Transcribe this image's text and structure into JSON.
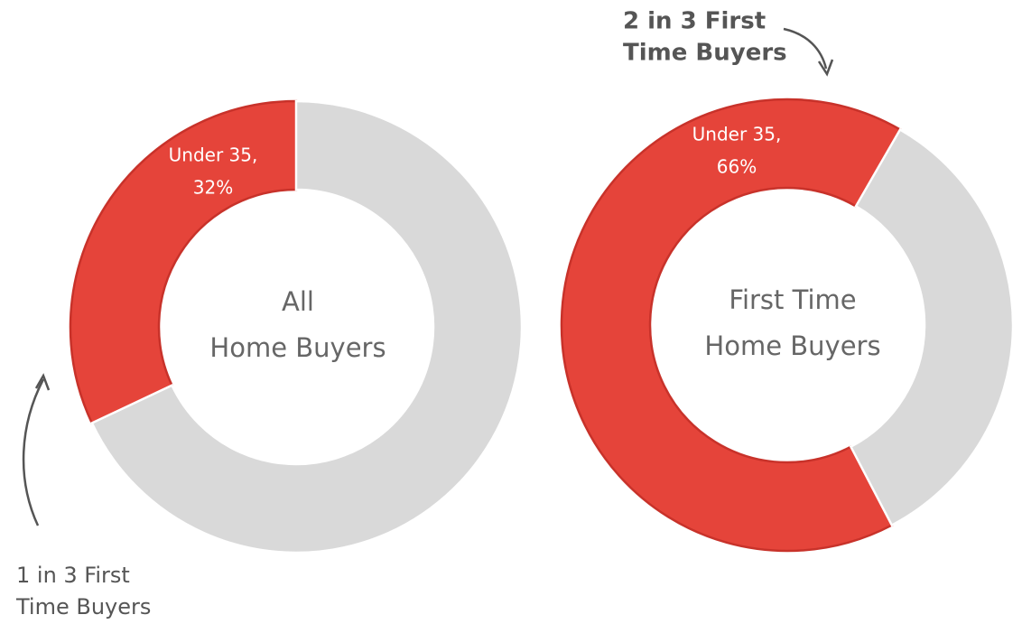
{
  "chart_data": [
    {
      "type": "donut",
      "title": [
        "All",
        "Home Buyers"
      ],
      "categories": [
        "Under 35,",
        null
      ],
      "values": [
        32,
        68
      ],
      "value_labels": [
        "32%",
        null
      ],
      "colors": [
        "#e5443a",
        "#d9d9d9"
      ],
      "start_angle": 0,
      "direction": "counterclockwise",
      "annotation": [
        "1 in 3 First",
        "Time Buyers"
      ]
    },
    {
      "type": "donut",
      "title": [
        "First Time",
        "Home Buyers"
      ],
      "categories": [
        "Under 35,",
        null
      ],
      "values": [
        66,
        34
      ],
      "value_labels": [
        "66%",
        null
      ],
      "colors": [
        "#e5443a",
        "#d9d9d9"
      ],
      "start_angle": 30,
      "direction": "counterclockwise",
      "annotation": [
        "2 in 3 First",
        "Time Buyers"
      ]
    }
  ]
}
